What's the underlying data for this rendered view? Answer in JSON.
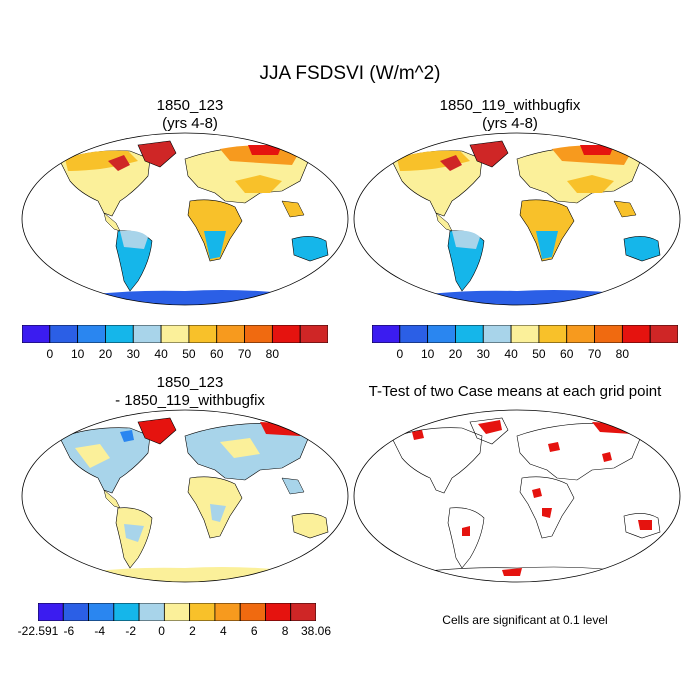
{
  "figure": {
    "title": "JJA FSDSVI (W/m^2)",
    "panels": [
      {
        "id": "p1",
        "title": "1850_123\n(yrs 4-8)"
      },
      {
        "id": "p2",
        "title": "1850_119_withbugfix\n(yrs 4-8)"
      },
      {
        "id": "p3",
        "title": "1850_123\n- 1850_119_withbugfix"
      },
      {
        "id": "p4",
        "title": "T-Test of two Case means at each grid point"
      }
    ],
    "significance_note": "Cells are significant at 0.1 level"
  },
  "colorbars": {
    "absolute": {
      "colors": [
        "#3b1cf0",
        "#2b5fe6",
        "#2a86f0",
        "#15b6ea",
        "#a8d4ea",
        "#fbf09a",
        "#f8c12a",
        "#f79a1e",
        "#f06a10",
        "#e5130f",
        "#cf2626"
      ],
      "labels": [
        "0",
        "10",
        "20",
        "30",
        "40",
        "50",
        "60",
        "70",
        "80"
      ]
    },
    "difference": {
      "colors": [
        "#3b1cf0",
        "#2b5fe6",
        "#2a86f0",
        "#15b6ea",
        "#a8d4ea",
        "#fbf09a",
        "#f8c12a",
        "#f79a1e",
        "#f06a10",
        "#e5130f",
        "#cf2626"
      ],
      "labels": [
        "-22.591",
        "-6",
        "-4",
        "-2",
        "0",
        "2",
        "4",
        "6",
        "8",
        "38.06"
      ]
    }
  },
  "legend_colors": {
    "significant": "#e5130f",
    "land_outline": "#000000"
  }
}
